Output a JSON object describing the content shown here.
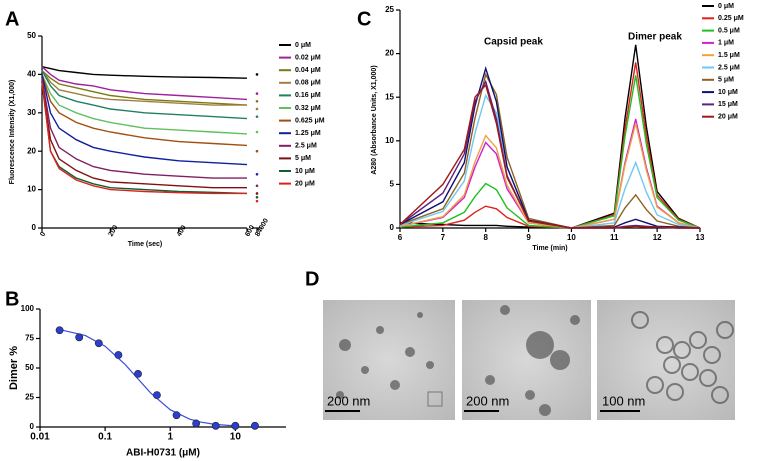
{
  "chart_data": [
    {
      "type": "line",
      "panel_label": "A",
      "ylabel": "Fluorescence Intensity (X1,000)",
      "xlabel": "Time (sec)",
      "x": [
        0,
        25,
        50,
        100,
        150,
        200,
        300,
        400,
        500,
        600,
        84000
      ],
      "xlim": [
        0,
        600
      ],
      "xticks": [
        0,
        200,
        400,
        600
      ],
      "x_break": {
        "xlim": [
          83900,
          84100
        ],
        "xticks": [
          84000
        ]
      },
      "ylim": [
        0,
        50
      ],
      "yticks": [
        0,
        10,
        20,
        30,
        40,
        50
      ],
      "grid": false,
      "legend": "right",
      "series": [
        {
          "name": "0 μM",
          "color": "#000000",
          "values": [
            42,
            41.5,
            41,
            40.5,
            40,
            39.8,
            39.5,
            39.3,
            39.2,
            39,
            40
          ]
        },
        {
          "name": "0.02 μM",
          "color": "#a020a0",
          "values": [
            42,
            40,
            38.5,
            37.5,
            37,
            36,
            35,
            34.5,
            34,
            33.5,
            35
          ]
        },
        {
          "name": "0.04 μM",
          "color": "#7a7a10",
          "values": [
            41,
            39,
            37.5,
            36.5,
            35.5,
            34.5,
            33.5,
            33,
            32.5,
            32,
            33
          ]
        },
        {
          "name": "0.08 μM",
          "color": "#a08040",
          "values": [
            41,
            38,
            36,
            35,
            34,
            33.5,
            33,
            32.5,
            32,
            32,
            31
          ]
        },
        {
          "name": "0.16 μM",
          "color": "#208060",
          "values": [
            41,
            37,
            34.5,
            33,
            32,
            31,
            30,
            29.5,
            29,
            28.5,
            29
          ]
        },
        {
          "name": "0.32 μM",
          "color": "#60c060",
          "values": [
            40,
            35,
            32,
            30,
            28.5,
            27.5,
            26,
            25.5,
            25,
            24.5,
            25
          ]
        },
        {
          "name": "0.625 μM",
          "color": "#a05010",
          "values": [
            40,
            33,
            30,
            27.5,
            26,
            25,
            23.5,
            22.5,
            22,
            21.5,
            20
          ]
        },
        {
          "name": "1.25 μM",
          "color": "#1020a0",
          "values": [
            40,
            30,
            26,
            23,
            21,
            20,
            18.5,
            17.5,
            17,
            16.5,
            14
          ]
        },
        {
          "name": "2.5 μM",
          "color": "#802060",
          "values": [
            39,
            26,
            21,
            18,
            16,
            15,
            14,
            13.5,
            13,
            13,
            11
          ]
        },
        {
          "name": "5 μM",
          "color": "#801010",
          "values": [
            38,
            23,
            18,
            15,
            13,
            12,
            11.5,
            11,
            10.5,
            10.5,
            9
          ]
        },
        {
          "name": "10 μM",
          "color": "#106030",
          "values": [
            38,
            20,
            16,
            13,
            11.5,
            10.5,
            10,
            9.5,
            9.3,
            9,
            8
          ]
        },
        {
          "name": "20 μM",
          "color": "#e02020",
          "values": [
            38,
            20,
            15.5,
            12.5,
            11,
            10,
            9.5,
            9.2,
            9,
            9,
            7
          ]
        }
      ]
    },
    {
      "type": "scatter",
      "panel_label": "B",
      "ylabel": "Dimer %",
      "xlabel": "ABI-H0731 (μM)",
      "xlog": true,
      "x": [
        0.02,
        0.04,
        0.08,
        0.16,
        0.32,
        0.625,
        1.25,
        2.5,
        5,
        10,
        20
      ],
      "values": [
        82,
        76,
        71,
        61,
        45,
        27,
        10,
        3,
        1,
        1,
        1
      ],
      "color": "#2a3fd0",
      "fit": {
        "x": [
          0.02,
          0.05,
          0.1,
          0.2,
          0.3,
          0.5,
          1,
          2,
          3,
          5,
          10
        ],
        "values": [
          82.5,
          77.5,
          68.5,
          53.4,
          42.5,
          28.9,
          14.7,
          6.6,
          4.1,
          2.1,
          0.9
        ],
        "color": "#3a4fd8"
      },
      "xlim": [
        0.01,
        60
      ],
      "xticks": [
        0.01,
        0.1,
        1,
        10
      ],
      "ylim": [
        0,
        100
      ],
      "yticks": [
        0,
        25,
        50,
        75,
        100
      ],
      "grid": false
    },
    {
      "type": "line",
      "panel_label": "C",
      "ylabel": "A280 (Absorbance Units, X1,000)",
      "xlabel": "Time (min)",
      "annotations": [
        "Capsid peak",
        "Dimer peak"
      ],
      "x": [
        6,
        7,
        7.5,
        7.75,
        8,
        8.25,
        8.5,
        9,
        10,
        11,
        11.25,
        11.5,
        11.75,
        12,
        12.5,
        13
      ],
      "xlim": [
        6,
        13
      ],
      "xticks": [
        6,
        7,
        8,
        9,
        10,
        11,
        12,
        13
      ],
      "ylim": [
        0,
        25
      ],
      "yticks": [
        0,
        5,
        10,
        15,
        20,
        25
      ],
      "grid": false,
      "legend": "right",
      "series": [
        {
          "name": "0 μM",
          "color": "#000000",
          "values": [
            0.6,
            0.4,
            0.3,
            0.3,
            0.3,
            0.3,
            0.2,
            0.1,
            0,
            1.7,
            12.6,
            21,
            11.6,
            4.2,
            1.1,
            0
          ]
        },
        {
          "name": "0.25 μM",
          "color": "#e02020",
          "values": [
            0.1,
            0.3,
            0.9,
            1.8,
            2.5,
            2.2,
            1.2,
            0.2,
            0,
            1.5,
            11.4,
            19,
            10.5,
            3.8,
            1,
            0
          ]
        },
        {
          "name": "0.5 μM",
          "color": "#20c020",
          "values": [
            0.1,
            0.6,
            1.8,
            3.6,
            5.1,
            4.4,
            2.3,
            0.3,
            0,
            1.4,
            10.5,
            17.5,
            9.6,
            3.5,
            0.9,
            0
          ]
        },
        {
          "name": "1 μM",
          "color": "#d020d0",
          "values": [
            0.2,
            1.2,
            3.5,
            7,
            9.8,
            8.5,
            4.5,
            0.6,
            0,
            1,
            7.5,
            12.5,
            6.9,
            2.5,
            0.6,
            0
          ]
        },
        {
          "name": "1.5 μM",
          "color": "#f0a040",
          "values": [
            0.2,
            1.3,
            3.8,
            7.6,
            10.6,
            9.2,
            4.9,
            0.6,
            0,
            1,
            7.2,
            12,
            6.6,
            2.4,
            0.6,
            0
          ]
        },
        {
          "name": "2.5 μM",
          "color": "#70c8f0",
          "values": [
            0.3,
            1.9,
            5.4,
            10.9,
            15.2,
            13.2,
            7,
            0.9,
            0,
            0.6,
            4.5,
            7.5,
            4.1,
            1.5,
            0.4,
            0
          ]
        },
        {
          "name": "5 μM",
          "color": "#906020",
          "values": [
            0.4,
            2.2,
            6.3,
            12.6,
            17.6,
            15.3,
            8.1,
            1.1,
            0,
            0.3,
            2.3,
            3.8,
            2.1,
            0.8,
            0.2,
            0
          ]
        },
        {
          "name": "10 μM",
          "color": "#101070",
          "values": [
            0.4,
            3,
            7.5,
            14,
            18.3,
            14.5,
            7,
            0.9,
            0,
            0.1,
            0.6,
            1,
            0.6,
            0.2,
            0.1,
            0
          ]
        },
        {
          "name": "15 μM",
          "color": "#602080",
          "values": [
            0.4,
            4,
            8.5,
            14.5,
            16.8,
            12.5,
            6,
            0.8,
            0,
            0,
            0.2,
            0.3,
            0.2,
            0.1,
            0,
            0
          ]
        },
        {
          "name": "20 μM",
          "color": "#a01818",
          "values": [
            0.4,
            5,
            9,
            15,
            16.4,
            12,
            5.8,
            0.8,
            0,
            0,
            0.1,
            0.2,
            0.1,
            0.1,
            0,
            0
          ]
        }
      ]
    }
  ],
  "images": {
    "panel_label": "D",
    "scale_bars": [
      "200 nm",
      "200 nm",
      "100 nm"
    ]
  }
}
